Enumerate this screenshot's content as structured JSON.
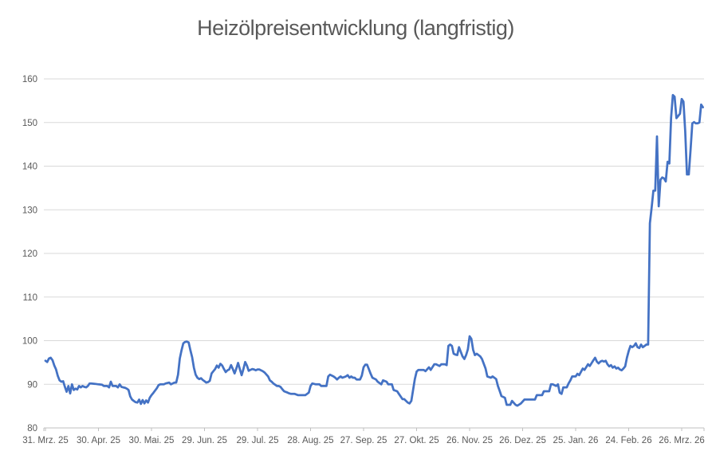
{
  "chart_data": {
    "type": "line",
    "title": "Heizölpreisentwicklung (langfristig)",
    "x_tick_labels": [
      "31. Mrz. 25",
      "30. Apr. 25",
      "30. Mai. 25",
      "29. Jun. 25",
      "29. Jul. 25",
      "28. Aug. 25",
      "27. Sep. 25",
      "27. Okt. 25",
      "26. Nov. 25",
      "26. Dez. 25",
      "25. Jan. 26",
      "24. Feb. 26",
      "26. Mrz. 26"
    ],
    "x_days_between_ticks": 30,
    "y_ticks": [
      80,
      90,
      100,
      110,
      120,
      130,
      140,
      150,
      160
    ],
    "ylim": [
      80,
      160
    ],
    "grid": "horizontal",
    "legend": "none",
    "colors": {
      "line": "#4472C4",
      "gridline": "#D9D9D9",
      "axis_line": "#BFBFBF",
      "tick_text": "#595959",
      "title_text": "#595959",
      "background": "#FFFFFF"
    },
    "series": [
      {
        "points": [
          [
            0,
            95.4
          ],
          [
            1,
            95.1
          ],
          [
            2,
            95.9
          ],
          [
            3,
            96.1
          ],
          [
            4,
            95.5
          ],
          [
            5,
            94.3
          ],
          [
            6,
            93.4
          ],
          [
            7,
            91.9
          ],
          [
            8,
            90.9
          ],
          [
            9,
            90.6
          ],
          [
            10,
            90.7
          ],
          [
            11,
            89.4
          ],
          [
            12,
            88.3
          ],
          [
            13,
            89.6
          ],
          [
            14,
            87.9
          ],
          [
            15,
            90.0
          ],
          [
            16,
            88.7
          ],
          [
            17,
            89.0
          ],
          [
            18,
            88.8
          ],
          [
            19,
            89.6
          ],
          [
            20,
            89.3
          ],
          [
            21,
            89.6
          ],
          [
            22,
            89.4
          ],
          [
            23,
            89.3
          ],
          [
            24,
            89.6
          ],
          [
            25,
            90.2
          ],
          [
            26,
            90.2
          ],
          [
            28,
            90.1
          ],
          [
            30,
            90.0
          ],
          [
            32,
            89.9
          ],
          [
            33,
            89.6
          ],
          [
            35,
            89.6
          ],
          [
            36,
            89.3
          ],
          [
            37,
            90.6
          ],
          [
            38,
            89.6
          ],
          [
            39,
            89.6
          ],
          [
            40,
            89.6
          ],
          [
            41,
            89.3
          ],
          [
            42,
            90.0
          ],
          [
            43,
            89.4
          ],
          [
            44,
            89.3
          ],
          [
            45,
            89.2
          ],
          [
            46,
            89.0
          ],
          [
            47,
            88.7
          ],
          [
            48,
            87.2
          ],
          [
            49,
            86.5
          ],
          [
            50,
            86.2
          ],
          [
            51,
            85.9
          ],
          [
            52,
            85.8
          ],
          [
            53,
            86.5
          ],
          [
            54,
            85.5
          ],
          [
            55,
            86.4
          ],
          [
            56,
            85.6
          ],
          [
            57,
            86.3
          ],
          [
            58,
            85.8
          ],
          [
            59,
            86.9
          ],
          [
            60,
            87.5
          ],
          [
            61,
            88.0
          ],
          [
            63,
            89.1
          ],
          [
            64,
            89.8
          ],
          [
            65,
            90.0
          ],
          [
            67,
            90.0
          ],
          [
            68,
            90.2
          ],
          [
            70,
            90.4
          ],
          [
            71,
            90.0
          ],
          [
            72,
            90.2
          ],
          [
            73,
            90.4
          ],
          [
            74,
            90.4
          ],
          [
            75,
            92.2
          ],
          [
            76,
            95.9
          ],
          [
            77,
            97.8
          ],
          [
            78,
            99.4
          ],
          [
            79,
            99.7
          ],
          [
            80,
            99.8
          ],
          [
            81,
            99.6
          ],
          [
            82,
            97.8
          ],
          [
            83,
            96.2
          ],
          [
            84,
            93.8
          ],
          [
            85,
            92.2
          ],
          [
            86,
            91.5
          ],
          [
            87,
            91.2
          ],
          [
            88,
            91.4
          ],
          [
            89,
            91.0
          ],
          [
            90,
            90.7
          ],
          [
            91,
            90.4
          ],
          [
            92,
            90.5
          ],
          [
            93,
            90.8
          ],
          [
            94,
            92.5
          ],
          [
            95,
            93.0
          ],
          [
            96,
            93.5
          ],
          [
            97,
            94.3
          ],
          [
            98,
            93.8
          ],
          [
            99,
            94.7
          ],
          [
            100,
            94.3
          ],
          [
            101,
            93.5
          ],
          [
            102,
            92.8
          ],
          [
            103,
            93.2
          ],
          [
            104,
            93.4
          ],
          [
            105,
            94.4
          ],
          [
            106,
            93.5
          ],
          [
            107,
            92.5
          ],
          [
            108,
            93.6
          ],
          [
            109,
            94.9
          ],
          [
            110,
            93.5
          ],
          [
            111,
            92.1
          ],
          [
            112,
            93.5
          ],
          [
            113,
            95.1
          ],
          [
            114,
            94.3
          ],
          [
            115,
            93.1
          ],
          [
            116,
            93.3
          ],
          [
            117,
            93.5
          ],
          [
            118,
            93.4
          ],
          [
            119,
            93.2
          ],
          [
            120,
            93.4
          ],
          [
            121,
            93.4
          ],
          [
            123,
            93.0
          ],
          [
            124,
            92.7
          ],
          [
            126,
            91.8
          ],
          [
            127,
            90.9
          ],
          [
            128,
            90.6
          ],
          [
            129,
            90.2
          ],
          [
            131,
            89.6
          ],
          [
            132,
            89.6
          ],
          [
            133,
            89.4
          ],
          [
            134,
            88.9
          ],
          [
            135,
            88.4
          ],
          [
            137,
            88.1
          ],
          [
            138,
            87.9
          ],
          [
            139,
            87.8
          ],
          [
            141,
            87.8
          ],
          [
            143,
            87.5
          ],
          [
            145,
            87.5
          ],
          [
            147,
            87.5
          ],
          [
            148,
            87.8
          ],
          [
            149,
            88.1
          ],
          [
            150,
            89.6
          ],
          [
            151,
            90.2
          ],
          [
            153,
            90.0
          ],
          [
            155,
            90.0
          ],
          [
            156,
            89.6
          ],
          [
            158,
            89.6
          ],
          [
            159,
            89.6
          ],
          [
            160,
            91.8
          ],
          [
            161,
            92.2
          ],
          [
            163,
            91.8
          ],
          [
            164,
            91.5
          ],
          [
            165,
            91.1
          ],
          [
            166,
            91.5
          ],
          [
            167,
            91.8
          ],
          [
            168,
            91.5
          ],
          [
            170,
            91.8
          ],
          [
            171,
            92.1
          ],
          [
            172,
            91.5
          ],
          [
            173,
            91.8
          ],
          [
            174,
            91.5
          ],
          [
            175,
            91.5
          ],
          [
            176,
            91.1
          ],
          [
            178,
            91.1
          ],
          [
            179,
            92.0
          ],
          [
            180,
            93.9
          ],
          [
            181,
            94.5
          ],
          [
            182,
            94.5
          ],
          [
            183,
            93.5
          ],
          [
            184,
            92.4
          ],
          [
            185,
            91.5
          ],
          [
            187,
            91.1
          ],
          [
            188,
            90.6
          ],
          [
            190,
            90.0
          ],
          [
            191,
            90.9
          ],
          [
            193,
            90.6
          ],
          [
            194,
            90.0
          ],
          [
            196,
            90.0
          ],
          [
            197,
            88.7
          ],
          [
            199,
            88.4
          ],
          [
            200,
            87.8
          ],
          [
            202,
            86.6
          ],
          [
            203,
            86.6
          ],
          [
            205,
            85.8
          ],
          [
            206,
            85.6
          ],
          [
            207,
            86.2
          ],
          [
            208,
            88.7
          ],
          [
            209,
            91.2
          ],
          [
            210,
            92.9
          ],
          [
            211,
            93.3
          ],
          [
            212,
            93.3
          ],
          [
            214,
            93.3
          ],
          [
            215,
            93.0
          ],
          [
            217,
            93.9
          ],
          [
            218,
            93.3
          ],
          [
            220,
            94.6
          ],
          [
            221,
            94.6
          ],
          [
            223,
            94.2
          ],
          [
            224,
            94.6
          ],
          [
            226,
            94.6
          ],
          [
            227,
            94.4
          ],
          [
            228,
            98.8
          ],
          [
            229,
            99.1
          ],
          [
            230,
            98.8
          ],
          [
            231,
            97.0
          ],
          [
            232,
            96.8
          ],
          [
            233,
            96.7
          ],
          [
            234,
            98.5
          ],
          [
            236,
            96.4
          ],
          [
            237,
            95.8
          ],
          [
            238,
            96.7
          ],
          [
            239,
            98.0
          ],
          [
            240,
            101.0
          ],
          [
            241,
            100.4
          ],
          [
            242,
            97.9
          ],
          [
            243,
            96.7
          ],
          [
            244,
            97.0
          ],
          [
            246,
            96.4
          ],
          [
            247,
            95.8
          ],
          [
            249,
            93.6
          ],
          [
            250,
            91.8
          ],
          [
            252,
            91.5
          ],
          [
            253,
            91.8
          ],
          [
            255,
            91.2
          ],
          [
            256,
            89.6
          ],
          [
            257,
            88.5
          ],
          [
            258,
            87.3
          ],
          [
            260,
            86.9
          ],
          [
            261,
            85.3
          ],
          [
            263,
            85.3
          ],
          [
            264,
            86.2
          ],
          [
            266,
            85.3
          ],
          [
            267,
            85.1
          ],
          [
            269,
            85.6
          ],
          [
            271,
            86.5
          ],
          [
            273,
            86.5
          ],
          [
            275,
            86.5
          ],
          [
            277,
            86.5
          ],
          [
            278,
            87.5
          ],
          [
            280,
            87.5
          ],
          [
            281,
            87.5
          ],
          [
            282,
            88.4
          ],
          [
            284,
            88.4
          ],
          [
            285,
            88.4
          ],
          [
            286,
            90.0
          ],
          [
            287,
            90.0
          ],
          [
            289,
            89.6
          ],
          [
            290,
            90.0
          ],
          [
            291,
            88.1
          ],
          [
            292,
            87.8
          ],
          [
            293,
            89.3
          ],
          [
            295,
            89.3
          ],
          [
            296,
            90.2
          ],
          [
            297,
            90.9
          ],
          [
            298,
            91.8
          ],
          [
            300,
            91.8
          ],
          [
            301,
            92.4
          ],
          [
            302,
            92.1
          ],
          [
            304,
            93.6
          ],
          [
            305,
            93.3
          ],
          [
            307,
            94.6
          ],
          [
            308,
            94.2
          ],
          [
            310,
            95.5
          ],
          [
            311,
            96.1
          ],
          [
            312,
            95.2
          ],
          [
            313,
            94.8
          ],
          [
            314,
            95.2
          ],
          [
            315,
            95.4
          ],
          [
            316,
            95.2
          ],
          [
            317,
            95.4
          ],
          [
            318,
            94.6
          ],
          [
            319,
            94.1
          ],
          [
            320,
            94.4
          ],
          [
            321,
            93.8
          ],
          [
            322,
            94.1
          ],
          [
            323,
            93.6
          ],
          [
            324,
            93.8
          ],
          [
            325,
            93.4
          ],
          [
            326,
            93.2
          ],
          [
            327,
            93.6
          ],
          [
            328,
            94.1
          ],
          [
            329,
            96.1
          ],
          [
            330,
            97.6
          ],
          [
            331,
            98.8
          ],
          [
            332,
            98.5
          ],
          [
            333,
            98.8
          ],
          [
            334,
            99.4
          ],
          [
            335,
            98.5
          ],
          [
            336,
            98.3
          ],
          [
            337,
            99.1
          ],
          [
            338,
            98.5
          ],
          [
            339,
            98.8
          ],
          [
            340,
            99.1
          ],
          [
            341,
            99.1
          ],
          [
            342,
            126.9
          ],
          [
            343,
            130.5
          ],
          [
            344,
            134.4
          ],
          [
            345,
            134.4
          ],
          [
            346,
            146.8
          ],
          [
            347,
            130.8
          ],
          [
            348,
            136.9
          ],
          [
            349,
            137.4
          ],
          [
            350,
            137.2
          ],
          [
            351,
            136.5
          ],
          [
            352,
            141.0
          ],
          [
            353,
            140.6
          ],
          [
            354,
            151.1
          ],
          [
            355,
            156.3
          ],
          [
            356,
            155.9
          ],
          [
            357,
            151.0
          ],
          [
            358,
            151.5
          ],
          [
            359,
            152.0
          ],
          [
            360,
            155.4
          ],
          [
            361,
            154.8
          ],
          [
            362,
            148.0
          ],
          [
            363,
            138.1
          ],
          [
            364,
            138.1
          ],
          [
            365,
            143.7
          ],
          [
            366,
            149.8
          ],
          [
            367,
            150.1
          ],
          [
            368,
            149.8
          ],
          [
            369,
            149.8
          ],
          [
            370,
            150.0
          ],
          [
            371,
            154.1
          ],
          [
            372,
            153.5
          ]
        ]
      }
    ]
  }
}
